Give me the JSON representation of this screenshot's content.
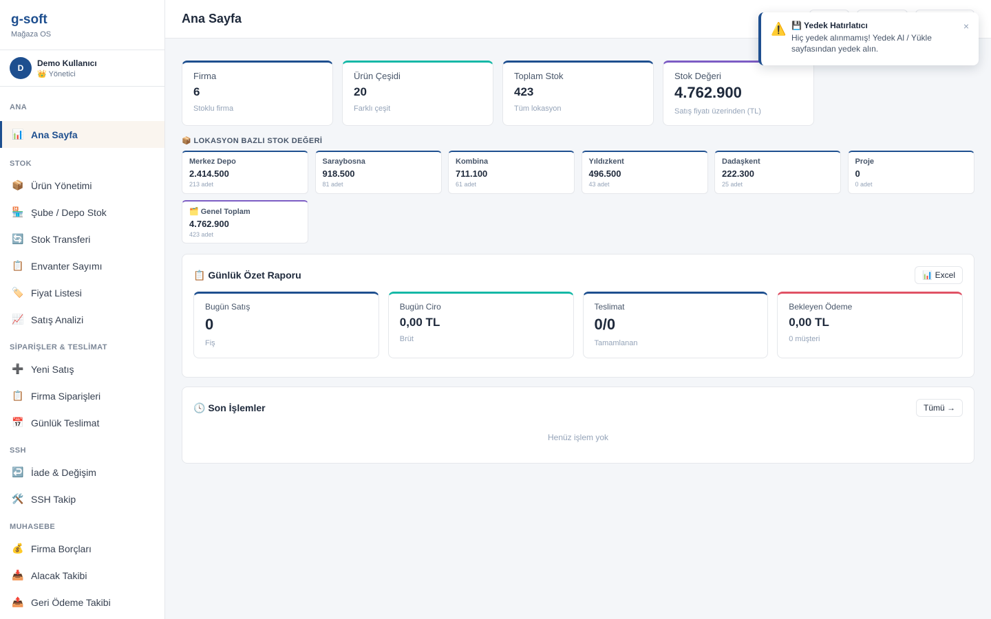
{
  "brand": {
    "name": "g-soft",
    "subtitle": "Mağaza OS"
  },
  "user": {
    "initial": "D",
    "name": "Demo Kullanıcı",
    "role_icon": "👑",
    "role": "Yönetici"
  },
  "nav": [
    {
      "section": "ANA",
      "items": [
        {
          "icon": "📊",
          "label": "Ana Sayfa",
          "active": true
        }
      ]
    },
    {
      "section": "STOK",
      "items": [
        {
          "icon": "📦",
          "label": "Ürün Yönetimi"
        },
        {
          "icon": "🏪",
          "label": "Şube / Depo Stok"
        },
        {
          "icon": "🔄",
          "label": "Stok Transferi"
        },
        {
          "icon": "📋",
          "label": "Envanter Sayımı"
        },
        {
          "icon": "🏷️",
          "label": "Fiyat Listesi"
        },
        {
          "icon": "📈",
          "label": "Satış Analizi"
        }
      ]
    },
    {
      "section": "SİPARİŞLER & TESLİMAT",
      "items": [
        {
          "icon": "➕",
          "label": "Yeni Satış"
        },
        {
          "icon": "📋",
          "label": "Firma Siparişleri"
        },
        {
          "icon": "📅",
          "label": "Günlük Teslimat"
        }
      ]
    },
    {
      "section": "SSH",
      "items": [
        {
          "icon": "↩️",
          "label": "İade & Değişim"
        },
        {
          "icon": "🛠️",
          "label": "SSH Takip"
        }
      ]
    },
    {
      "section": "MUHASEBE",
      "items": [
        {
          "icon": "💰",
          "label": "Firma Borçları"
        },
        {
          "icon": "📥",
          "label": "Alacak Takibi"
        },
        {
          "icon": "📤",
          "label": "Geri Ödeme Takibi"
        }
      ]
    }
  ],
  "header": {
    "title": "Ana Sayfa"
  },
  "kpis": [
    {
      "label": "Firma",
      "value": "6",
      "sub": "Stoklu firma",
      "accent": "#1e4f8f"
    },
    {
      "label": "Ürün Çeşidi",
      "value": "20",
      "sub": "Farklı çeşit",
      "accent": "#14b8a6"
    },
    {
      "label": "Toplam Stok",
      "value": "423",
      "sub": "Tüm lokasyon",
      "accent": "#1e4f8f"
    },
    {
      "label": "Stok Değeri",
      "value": "4.762.900",
      "sub": "Satış fiyatı üzerinden (TL)",
      "accent": "#7c5cc4"
    }
  ],
  "locations": {
    "title": "📦 LOKASYON BAZLI STOK DEĞERİ",
    "items": [
      {
        "name": "Merkez Depo",
        "value": "2.414.500",
        "count": "213 adet"
      },
      {
        "name": "Saraybosna",
        "value": "918.500",
        "count": "81 adet"
      },
      {
        "name": "Kombina",
        "value": "711.100",
        "count": "61 adet"
      },
      {
        "name": "Yıldızkent",
        "value": "496.500",
        "count": "43 adet"
      },
      {
        "name": "Dadaşkent",
        "value": "222.300",
        "count": "25 adet"
      },
      {
        "name": "Proje",
        "value": "0",
        "count": "0 adet"
      }
    ],
    "total": {
      "name": "🗂️ Genel Toplam",
      "value": "4.762.900",
      "count": "423 adet"
    }
  },
  "daily_report": {
    "title": "📋 Günlük Özet Raporu",
    "excel_label": "📊 Excel",
    "cards": [
      {
        "label": "Bugün Satış",
        "value": "0",
        "sub": "Fiş",
        "accent": "#1e4f8f"
      },
      {
        "label": "Bugün Ciro",
        "value": "0,00 TL",
        "sub": "Brüt",
        "accent": "#14b8a6"
      },
      {
        "label": "Teslimat",
        "value": "0/0",
        "sub": "Tamamlanan",
        "accent": "#1e4f8f"
      },
      {
        "label": "Bekleyen Ödeme",
        "value": "0,00 TL",
        "sub": "0 müşteri",
        "accent": "#e05265"
      }
    ]
  },
  "recent": {
    "title": "🕓 Son İşlemler",
    "all_label": "Tümü →",
    "empty": "Henüz işlem yok"
  },
  "toast": {
    "icon": "⚠️",
    "title": "💾 Yedek Hatırlatıcı",
    "message": "Hiç yedek alınmamış! Yedek Al / Yükle sayfasından yedek alın.",
    "close": "×"
  }
}
